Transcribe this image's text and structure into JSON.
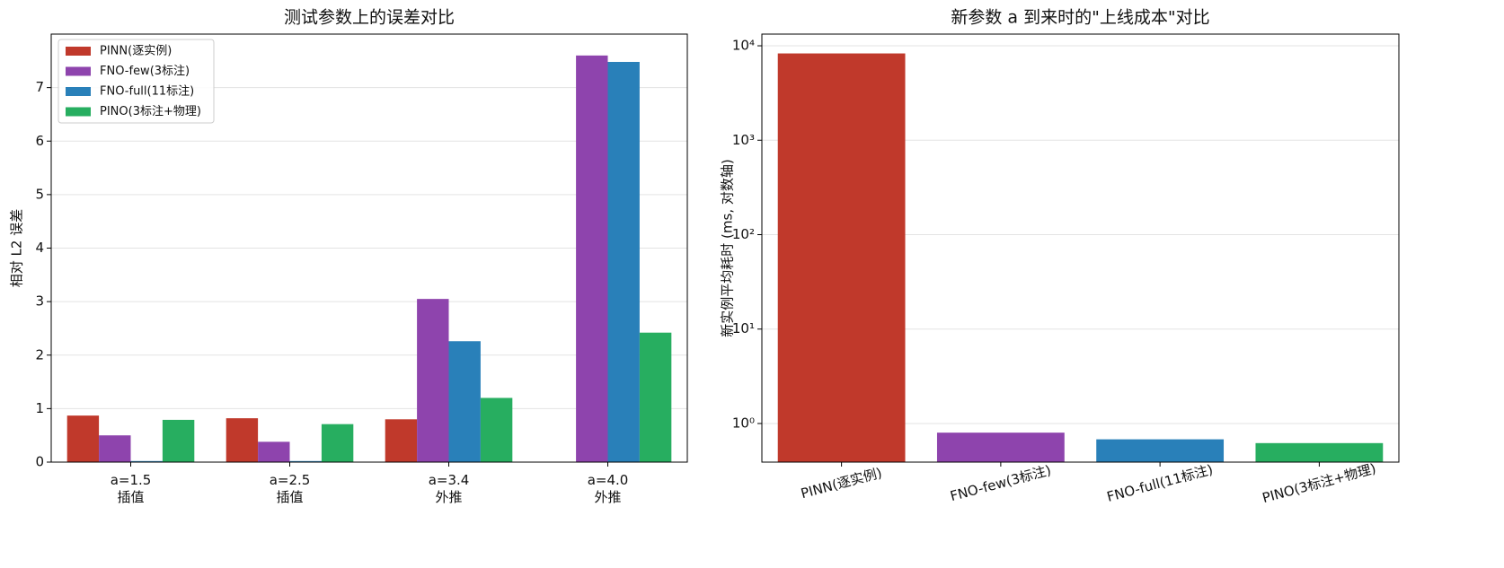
{
  "chart_data": [
    {
      "type": "grouped-bar",
      "title": "测试参数上的误差对比",
      "ylabel": "相对 L2 误差",
      "categories": [
        "a=1.5\n插值",
        "a=2.5\n插值",
        "a=3.4\n外推",
        "a=4.0\n外推"
      ],
      "series": [
        {
          "name": "PINN(逐实例)",
          "color": "#c0392b",
          "values": [
            0.87,
            0.82,
            0.8,
            null
          ]
        },
        {
          "name": "FNO-few(3标注)",
          "color": "#8e44ad",
          "values": [
            0.5,
            0.38,
            3.05,
            7.6
          ]
        },
        {
          "name": "FNO-full(11标注)",
          "color": "#2980b9",
          "values": [
            0.02,
            0.02,
            2.26,
            7.48
          ]
        },
        {
          "name": "PINO(3标注+物理)",
          "color": "#27ae60",
          "values": [
            0.79,
            0.71,
            1.2,
            2.42
          ]
        }
      ],
      "ylim": [
        0,
        8
      ],
      "yticks": [
        0,
        1,
        2,
        3,
        4,
        5,
        6,
        7
      ],
      "grid": true,
      "legend": "upper-left"
    },
    {
      "type": "bar",
      "title": "新参数 a 到来时的\"上线成本\"对比",
      "ylabel": "新实例平均耗时 (ms, 对数轴)",
      "categories": [
        "PINN(逐实例)",
        "FNO-few(3标注)",
        "FNO-full(11标注)",
        "PINO(3标注+物理)"
      ],
      "values": [
        8300,
        0.8,
        0.68,
        0.62
      ],
      "colors": [
        "#c0392b",
        "#8e44ad",
        "#2980b9",
        "#27ae60"
      ],
      "log_scale": true,
      "ylim": [
        0.39,
        13300
      ],
      "yticks": [
        {
          "value": 1,
          "label": "10⁰"
        },
        {
          "value": 10,
          "label": "10¹"
        },
        {
          "value": 100,
          "label": "10²"
        },
        {
          "value": 1000,
          "label": "10³"
        },
        {
          "value": 10000,
          "label": "10⁴"
        }
      ],
      "grid": true
    }
  ]
}
